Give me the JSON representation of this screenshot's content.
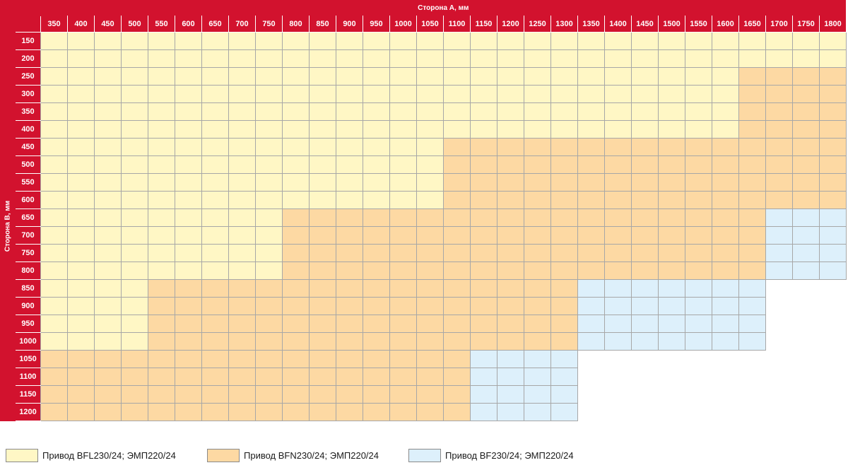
{
  "table": {
    "col_title": "Сторона А, мм",
    "row_title": "Сторона В, мм",
    "cols": [
      "350",
      "400",
      "450",
      "500",
      "550",
      "600",
      "650",
      "700",
      "750",
      "800",
      "850",
      "900",
      "950",
      "1000",
      "1050",
      "1100",
      "1150",
      "1200",
      "1250",
      "1300",
      "1350",
      "1400",
      "1450",
      "1500",
      "1550",
      "1600",
      "1650",
      "1700",
      "1750",
      "1800"
    ],
    "rows": [
      "150",
      "200",
      "250",
      "300",
      "350",
      "400",
      "450",
      "500",
      "550",
      "600",
      "650",
      "700",
      "750",
      "800",
      "850",
      "900",
      "950",
      "1000",
      "1050",
      "1100",
      "1150",
      "1200"
    ],
    "zone_limits": [
      [
        30,
        30,
        30
      ],
      [
        30,
        30,
        30
      ],
      [
        26,
        30,
        30
      ],
      [
        26,
        30,
        30
      ],
      [
        26,
        30,
        30
      ],
      [
        26,
        30,
        30
      ],
      [
        15,
        30,
        30
      ],
      [
        15,
        30,
        30
      ],
      [
        15,
        30,
        30
      ],
      [
        15,
        30,
        30
      ],
      [
        9,
        27,
        30
      ],
      [
        9,
        27,
        30
      ],
      [
        9,
        27,
        30
      ],
      [
        9,
        27,
        30
      ],
      [
        4,
        20,
        27
      ],
      [
        4,
        20,
        27
      ],
      [
        4,
        20,
        27
      ],
      [
        4,
        20,
        27
      ],
      [
        0,
        16,
        20
      ],
      [
        0,
        16,
        20
      ],
      [
        0,
        16,
        20
      ],
      [
        0,
        16,
        20
      ]
    ]
  },
  "legend": [
    {
      "label": "Привод BFL230/24; ЭМП220/24",
      "color": "#fff7c5"
    },
    {
      "label": "Привод BFN230/24; ЭМП220/24",
      "color": "#fdd9a3"
    },
    {
      "label": "Привод BF230/24; ЭМП220/24",
      "color": "#ddf0fb"
    }
  ],
  "colors": {
    "header_red": "#d2122e",
    "grid_line": "#a7a7a7"
  }
}
